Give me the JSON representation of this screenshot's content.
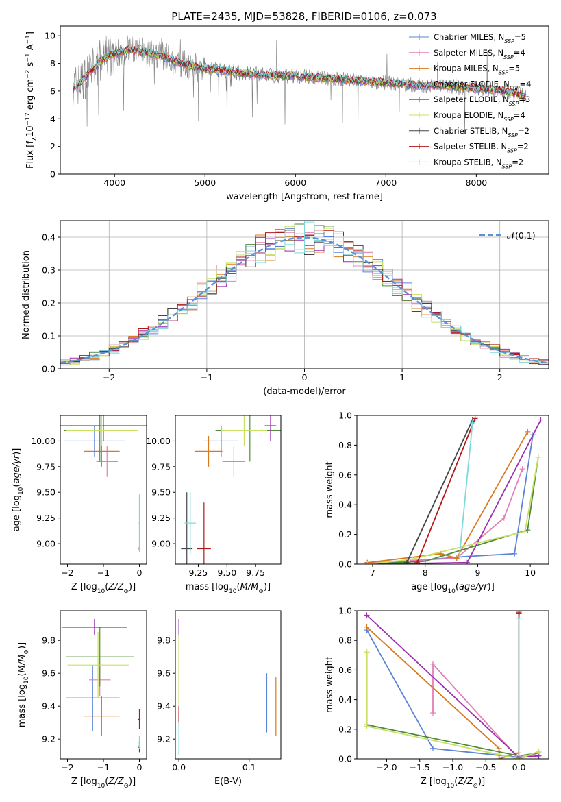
{
  "figure_title": "PLATE=2435, MJD=53828, FIBERID=0106, z=0.073",
  "models": [
    {
      "name": "Chabrier MILES, N$_{SSP}$=5",
      "label": "Chabrier MILES, N",
      "sub": "SSP",
      "tail": "=5",
      "color": "#5b84d6"
    },
    {
      "name": "Salpeter MILES, N$_{SSP}$=4",
      "label": "Salpeter MILES, N",
      "sub": "SSP",
      "tail": "=4",
      "color": "#e27fb6"
    },
    {
      "name": "Kroupa MILES, N$_{SSP}$=5",
      "label": "Kroupa MILES, N",
      "sub": "SSP",
      "tail": "=5",
      "color": "#d97a1e"
    },
    {
      "name": "Chabrier ELODIE, N$_{SSP}$=4",
      "label": "Chabrier ELODIE, N",
      "sub": "SSP",
      "tail": "=4",
      "color": "#4f8a3a"
    },
    {
      "name": "Salpeter ELODIE, N$_{SSP}$=3",
      "label": "Salpeter ELODIE, N",
      "sub": "SSP",
      "tail": "=3",
      "color": "#9b2fb0"
    },
    {
      "name": "Kroupa ELODIE, N$_{SSP}$=4",
      "label": "Kroupa ELODIE, N",
      "sub": "SSP",
      "tail": "=4",
      "color": "#c8e063"
    },
    {
      "name": "Chabrier STELIB, N$_{SSP}$=2",
      "label": "Chabrier STELIB, N",
      "sub": "SSP",
      "tail": "=2",
      "color": "#444444"
    },
    {
      "name": "Salpeter STELIB, N$_{SSP}$=2",
      "label": "Salpeter STELIB, N",
      "sub": "SSP",
      "tail": "=2",
      "color": "#b01717"
    },
    {
      "name": "Kroupa STELIB, N$_{SSP}$=2",
      "label": "Kroupa STELIB, N",
      "sub": "SSP",
      "tail": "=2",
      "color": "#7fd8d8"
    }
  ],
  "chart_data": [
    {
      "id": "spectrum",
      "type": "line",
      "xlabel": "wavelength [Angstrom, rest frame]",
      "ylabel": "Flux [f_λ 10^{-17} erg cm^{-2} s^{-1} A^{-1}]",
      "xlim": [
        3400,
        8800
      ],
      "ylim": [
        0,
        10.7
      ],
      "xticks": [
        4000,
        5000,
        6000,
        7000,
        8000
      ],
      "yticks": [
        0,
        2,
        4,
        6,
        8,
        10
      ],
      "grid": false,
      "legend": "upper-right",
      "data_color": "#808080",
      "continuum": {
        "x": [
          3540,
          3650,
          3750,
          3850,
          3950,
          4050,
          4150,
          4250,
          4350,
          4450,
          4550,
          4650,
          4750,
          4850,
          4950,
          5050,
          5200,
          5400,
          5600,
          5800,
          6000,
          6200,
          6400,
          6600,
          6800,
          7000,
          7200,
          7400,
          7600,
          7800,
          8000,
          8200,
          8400,
          8550
        ],
        "y": [
          6.2,
          6.8,
          7.5,
          8.2,
          8.6,
          8.8,
          9.0,
          8.9,
          8.8,
          8.6,
          8.5,
          8.2,
          8.0,
          7.8,
          7.7,
          7.6,
          7.5,
          7.3,
          7.2,
          7.1,
          7.1,
          7.0,
          6.9,
          6.8,
          6.7,
          6.6,
          6.5,
          6.4,
          6.4,
          6.3,
          6.2,
          6.1,
          5.9,
          5.6
        ]
      }
    },
    {
      "id": "residuals",
      "type": "histogram",
      "xlabel": "(data-model)/error",
      "ylabel": "Normed distribution",
      "xlim": [
        -2.5,
        2.5
      ],
      "ylim": [
        0,
        0.45
      ],
      "xticks": [
        -2,
        -1,
        0,
        1,
        2
      ],
      "yticks": [
        0.0,
        0.1,
        0.2,
        0.3,
        0.4
      ],
      "grid": true,
      "legend": "upper-right",
      "reference": {
        "name": "𝒩(0,1)",
        "mean": 0,
        "sigma": 1,
        "color": "#5b8fd6"
      }
    },
    {
      "id": "age_vs_Z",
      "type": "errorbar",
      "xlabel": "Z [log10(Z/Z⊙)]",
      "ylabel": "age [log10(age/yr)]",
      "xlim": [
        -2.2,
        0.2
      ],
      "ylim": [
        8.8,
        10.25
      ],
      "xticks": [
        -2,
        -1,
        0
      ],
      "yticks": [
        9.0,
        9.25,
        9.5,
        9.75,
        10.0
      ],
      "points": [
        {
          "x": -1.25,
          "y": 10.0,
          "xerr": 0.85,
          "yerr": 0.15,
          "color": "#5b84d6"
        },
        {
          "x": -0.9,
          "y": 9.8,
          "xerr": 0.3,
          "yerr": 0.15,
          "color": "#e27fb6"
        },
        {
          "x": -1.05,
          "y": 9.9,
          "xerr": 0.5,
          "yerr": 0.15,
          "color": "#d97a1e"
        },
        {
          "x": -1.1,
          "y": 10.1,
          "xerr": 1.0,
          "yerr": 0.3,
          "color": "#4f8a3a"
        },
        {
          "x": -1.0,
          "y": 10.15,
          "xerr": 1.2,
          "yerr": 0.15,
          "color": "#9b2fb0"
        },
        {
          "x": -1.05,
          "y": 10.1,
          "xerr": 1.0,
          "yerr": 0.15,
          "color": "#c8e063"
        },
        {
          "x": 0.0,
          "y": 8.95,
          "xerr": 0.02,
          "yerr": 0.02,
          "color": "#444444"
        },
        {
          "x": 0.0,
          "y": 8.95,
          "xerr": 0.02,
          "yerr": 0.02,
          "color": "#b01717"
        },
        {
          "x": 0.0,
          "y": 9.2,
          "xerr": 0.02,
          "yerr": 0.28,
          "color": "#7fd8d8"
        }
      ]
    },
    {
      "id": "age_vs_mass",
      "type": "errorbar",
      "xlabel": "mass [log10(M/M⊙)]",
      "ylabel": "",
      "xlim": [
        9.05,
        9.97
      ],
      "ylim": [
        8.8,
        10.25
      ],
      "xticks": [
        9.25,
        9.5,
        9.75
      ],
      "yticks": [
        9.0,
        9.25,
        9.5,
        9.75,
        10.0
      ],
      "points": [
        {
          "x": 9.45,
          "y": 10.0,
          "xerr": 0.15,
          "yerr": 0.15,
          "color": "#5b84d6"
        },
        {
          "x": 9.56,
          "y": 9.8,
          "xerr": 0.1,
          "yerr": 0.15,
          "color": "#e27fb6"
        },
        {
          "x": 9.34,
          "y": 9.9,
          "xerr": 0.12,
          "yerr": 0.15,
          "color": "#d97a1e"
        },
        {
          "x": 9.7,
          "y": 10.1,
          "xerr": 0.3,
          "yerr": 0.3,
          "color": "#4f8a3a"
        },
        {
          "x": 9.88,
          "y": 10.15,
          "xerr": 0.05,
          "yerr": 0.15,
          "color": "#9b2fb0"
        },
        {
          "x": 9.65,
          "y": 10.1,
          "xerr": 0.2,
          "yerr": 0.15,
          "color": "#c8e063"
        },
        {
          "x": 9.15,
          "y": 8.95,
          "xerr": 0.05,
          "yerr": 0.55,
          "color": "#444444"
        },
        {
          "x": 9.3,
          "y": 8.95,
          "xerr": 0.06,
          "yerr": 0.45,
          "color": "#b01717"
        },
        {
          "x": 9.18,
          "y": 9.2,
          "xerr": 0.05,
          "yerr": 0.3,
          "color": "#7fd8d8"
        }
      ]
    },
    {
      "id": "weight_vs_age",
      "type": "line",
      "xlabel": "age [log10(age/yr)]",
      "ylabel": "mass weight",
      "xlim": [
        6.7,
        10.35
      ],
      "ylim": [
        0,
        1.0
      ],
      "xticks": [
        7,
        8,
        9,
        10
      ],
      "yticks": [
        0.0,
        0.2,
        0.4,
        0.6,
        0.8,
        1.0
      ],
      "series": [
        {
          "color": "#5b84d6",
          "x": [
            6.9,
            7.7,
            8.7,
            9.7,
            10.05
          ],
          "y": [
            0.01,
            0.02,
            0.05,
            0.07,
            0.87
          ]
        },
        {
          "color": "#e27fb6",
          "x": [
            6.9,
            8.6,
            9.5,
            9.85
          ],
          "y": [
            0.01,
            0.04,
            0.31,
            0.64
          ]
        },
        {
          "color": "#d97a1e",
          "x": [
            6.9,
            8.3,
            8.6,
            9.95
          ],
          "y": [
            0.01,
            0.07,
            0.04,
            0.89
          ]
        },
        {
          "color": "#4f8a3a",
          "x": [
            6.9,
            8.0,
            9.95,
            10.15
          ],
          "y": [
            0.0,
            0.02,
            0.23,
            0.72
          ]
        },
        {
          "color": "#9b2fb0",
          "x": [
            6.9,
            8.8,
            10.2
          ],
          "y": [
            0.0,
            0.01,
            0.97
          ]
        },
        {
          "color": "#c8e063",
          "x": [
            6.9,
            7.7,
            9.9,
            10.15
          ],
          "y": [
            0.0,
            0.03,
            0.22,
            0.72
          ]
        },
        {
          "color": "#444444",
          "x": [
            7.65,
            8.9
          ],
          "y": [
            0.01,
            0.97
          ]
        },
        {
          "color": "#b01717",
          "x": [
            7.85,
            8.95
          ],
          "y": [
            0.01,
            0.98
          ]
        },
        {
          "color": "#7fd8d8",
          "x": [
            8.65,
            8.9
          ],
          "y": [
            0.05,
            0.95
          ]
        }
      ]
    },
    {
      "id": "mass_vs_Z",
      "type": "errorbar",
      "xlabel": "Z [log10(Z/Z⊙)]",
      "ylabel": "mass [log10(M/M⊙)]",
      "xlim": [
        -2.2,
        0.2
      ],
      "ylim": [
        9.08,
        9.98
      ],
      "xticks": [
        -2,
        -1,
        0
      ],
      "yticks": [
        9.2,
        9.4,
        9.6,
        9.8
      ],
      "points": [
        {
          "x": -1.3,
          "y": 9.45,
          "xerr": 0.75,
          "yerr": 0.2,
          "color": "#5b84d6"
        },
        {
          "x": -1.1,
          "y": 9.56,
          "xerr": 0.3,
          "yerr": 0.1,
          "color": "#e27fb6"
        },
        {
          "x": -1.05,
          "y": 9.34,
          "xerr": 0.5,
          "yerr": 0.12,
          "color": "#d97a1e"
        },
        {
          "x": -1.1,
          "y": 9.7,
          "xerr": 0.95,
          "yerr": 0.18,
          "color": "#4f8a3a"
        },
        {
          "x": -1.25,
          "y": 9.88,
          "xerr": 0.9,
          "yerr": 0.05,
          "color": "#9b2fb0"
        },
        {
          "x": -1.15,
          "y": 9.65,
          "xerr": 0.85,
          "yerr": 0.2,
          "color": "#c8e063"
        },
        {
          "x": 0.0,
          "y": 9.15,
          "xerr": 0.03,
          "yerr": 0.03,
          "color": "#444444"
        },
        {
          "x": 0.0,
          "y": 9.32,
          "xerr": 0.03,
          "yerr": 0.06,
          "color": "#b01717"
        },
        {
          "x": 0.0,
          "y": 9.18,
          "xerr": 0.03,
          "yerr": 0.04,
          "color": "#7fd8d8"
        }
      ]
    },
    {
      "id": "mass_vs_EBV",
      "type": "errorbar",
      "xlabel": "E(B-V)",
      "ylabel": "",
      "xlim": [
        -0.005,
        0.145
      ],
      "ylim": [
        9.08,
        9.98
      ],
      "xticks": [
        0.0,
        0.1
      ],
      "yticks": [
        9.2,
        9.4,
        9.6,
        9.8
      ],
      "points": [
        {
          "x": 0.125,
          "y": 9.42,
          "xerr": 0,
          "yerr": 0.18,
          "color": "#5b84d6"
        },
        {
          "x": 0.138,
          "y": 9.4,
          "xerr": 0,
          "yerr": 0.18,
          "color": "#d97a1e"
        },
        {
          "x": 0.0,
          "y": 9.6,
          "xerr": 0,
          "yerr": 0.33,
          "color": "#9b2fb0"
        },
        {
          "x": 0.0,
          "y": 9.55,
          "xerr": 0,
          "yerr": 0.28,
          "color": "#c8e063"
        },
        {
          "x": 0.0,
          "y": 9.34,
          "xerr": 0,
          "yerr": 0.06,
          "color": "#b01717"
        },
        {
          "x": 0.0,
          "y": 9.2,
          "xerr": 0,
          "yerr": 0.1,
          "color": "#7fd8d8"
        }
      ]
    },
    {
      "id": "weight_vs_Z",
      "type": "line",
      "xlabel": "Z [log10(Z/Z⊙)]",
      "ylabel": "mass weight",
      "xlim": [
        -2.45,
        0.45
      ],
      "ylim": [
        0,
        1.0
      ],
      "xticks": [
        -2.0,
        -1.5,
        -1.0,
        -0.5,
        0.0
      ],
      "yticks": [
        0.0,
        0.2,
        0.4,
        0.6,
        0.8,
        1.0
      ],
      "series": [
        {
          "color": "#5b84d6",
          "x": [
            -2.3,
            -1.3,
            0.0,
            0.3
          ],
          "y": [
            0.87,
            0.07,
            0.01,
            0.02
          ]
        },
        {
          "color": "#e27fb6",
          "x": [
            -1.3,
            -1.3,
            0.0,
            0.3
          ],
          "y": [
            0.31,
            0.64,
            0.0,
            0.04
          ]
        },
        {
          "color": "#d97a1e",
          "x": [
            -2.3,
            -0.3,
            -0.3,
            0.0
          ],
          "y": [
            0.89,
            0.07,
            0.0,
            0.04
          ]
        },
        {
          "color": "#4f8a3a",
          "x": [
            -2.3,
            -2.3,
            0.0,
            0.3
          ],
          "y": [
            0.72,
            0.23,
            0.02,
            0.04
          ]
        },
        {
          "color": "#9b2fb0",
          "x": [
            -2.3,
            0.0,
            0.3
          ],
          "y": [
            0.97,
            0.01,
            0.02
          ]
        },
        {
          "color": "#c8e063",
          "x": [
            -2.3,
            -2.3,
            0.0,
            0.3
          ],
          "y": [
            0.72,
            0.22,
            0.0,
            0.05
          ]
        },
        {
          "color": "#444444",
          "x": [
            0.0,
            0.0
          ],
          "y": [
            0.01,
            0.98
          ]
        },
        {
          "color": "#b01717",
          "x": [
            0.0,
            0.0
          ],
          "y": [
            0.01,
            0.99
          ]
        },
        {
          "color": "#7fd8d8",
          "x": [
            0.0,
            0.0
          ],
          "y": [
            0.02,
            0.95
          ]
        }
      ]
    }
  ]
}
